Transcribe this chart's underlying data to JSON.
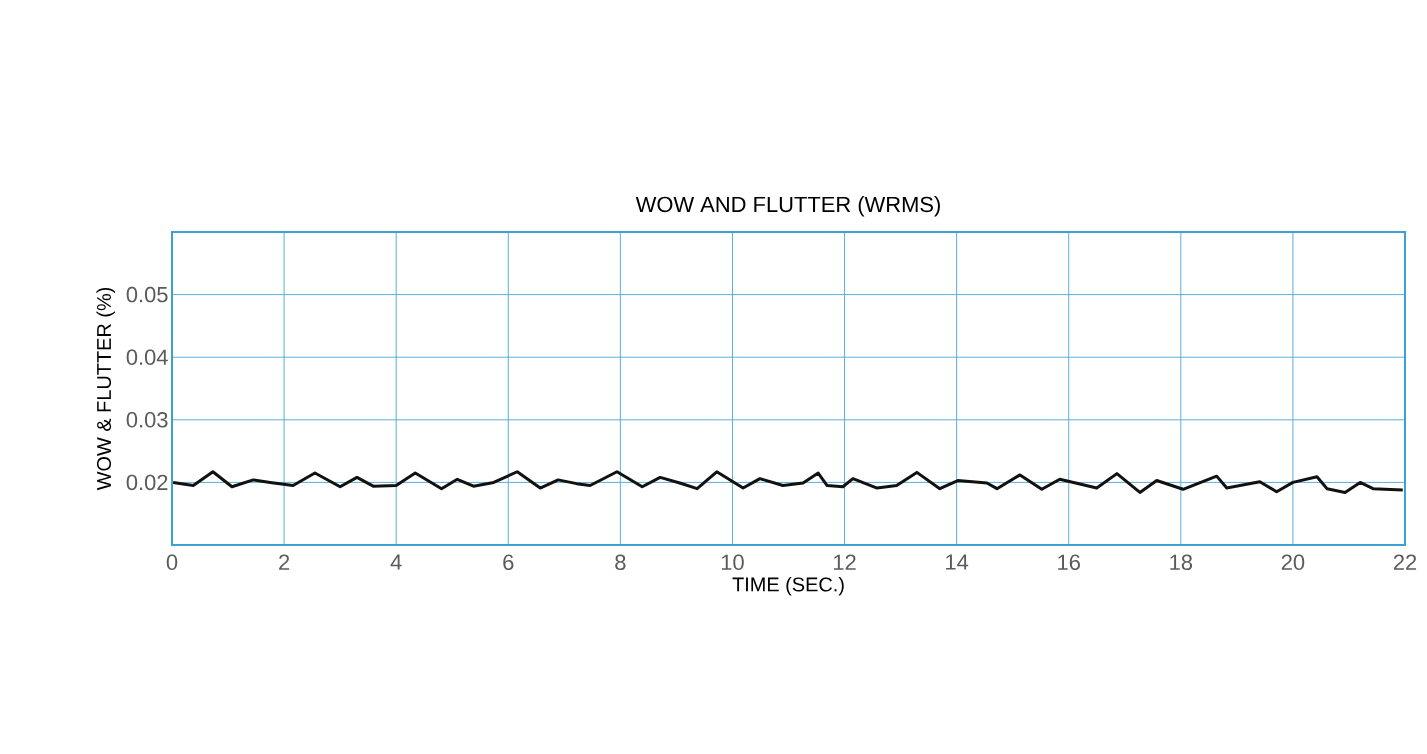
{
  "chart_data": {
    "type": "line",
    "title": "WOW AND FLUTTER (WRMS)",
    "xlabel": "TIME (SEC.)",
    "ylabel": "WOW & FLUTTER (%)",
    "xlim": [
      0,
      22
    ],
    "ylim": [
      0.01,
      0.06
    ],
    "xticks": [
      0,
      2,
      4,
      6,
      8,
      10,
      12,
      14,
      16,
      18,
      20,
      22
    ],
    "yticks": [
      0.02,
      0.03,
      0.04,
      0.05
    ],
    "grid": true,
    "series": [
      {
        "color": "#111111",
        "x": [
          0.02,
          0.38,
          0.73,
          1.07,
          1.45,
          1.75,
          2.16,
          2.55,
          3.0,
          3.3,
          3.59,
          4.0,
          4.34,
          4.81,
          5.09,
          5.38,
          5.74,
          6.16,
          6.57,
          6.89,
          7.22,
          7.46,
          7.94,
          8.39,
          8.71,
          9.06,
          9.37,
          9.72,
          10.19,
          10.49,
          10.9,
          11.26,
          11.53,
          11.69,
          11.97,
          12.15,
          12.58,
          12.93,
          13.29,
          13.7,
          14.02,
          14.54,
          14.72,
          15.13,
          15.52,
          15.84,
          16.5,
          16.86,
          17.27,
          17.57,
          18.04,
          18.64,
          18.82,
          19.41,
          19.71,
          20.0,
          20.43,
          20.61,
          20.93,
          21.2,
          21.43,
          21.96
        ],
        "values": [
          0.02,
          0.0195,
          0.0217,
          0.0193,
          0.0204,
          0.02,
          0.0195,
          0.0215,
          0.0193,
          0.0208,
          0.0194,
          0.0195,
          0.0215,
          0.019,
          0.0205,
          0.0194,
          0.02,
          0.0217,
          0.0191,
          0.0204,
          0.0198,
          0.0195,
          0.0217,
          0.0193,
          0.0208,
          0.0199,
          0.019,
          0.0217,
          0.0191,
          0.0206,
          0.0195,
          0.0199,
          0.0215,
          0.0195,
          0.0193,
          0.0206,
          0.0191,
          0.0195,
          0.0216,
          0.019,
          0.0203,
          0.0199,
          0.019,
          0.0212,
          0.0189,
          0.0205,
          0.0191,
          0.0214,
          0.0184,
          0.0203,
          0.0189,
          0.021,
          0.0191,
          0.0201,
          0.0185,
          0.02,
          0.0209,
          0.019,
          0.0184,
          0.02,
          0.019,
          0.0188
        ]
      }
    ]
  }
}
